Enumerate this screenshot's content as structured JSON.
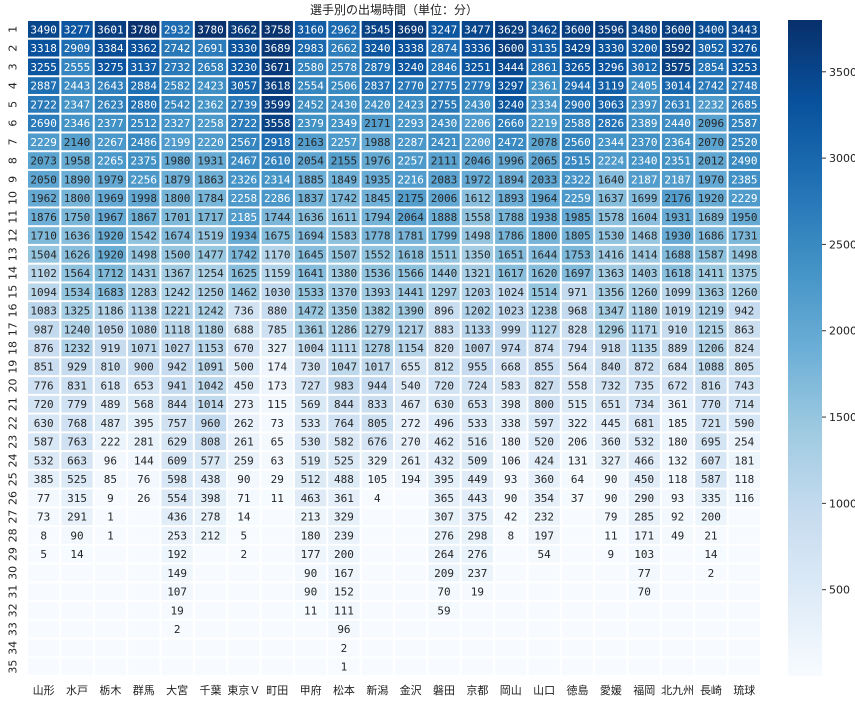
{
  "chart_data": {
    "type": "heatmap",
    "title": "選手別の出場時間（単位：分）",
    "xlabel": "",
    "ylabel": "",
    "colormap": "Blues",
    "vmin": 0,
    "vmax": 3800,
    "colorbar_ticks": [
      500,
      1000,
      1500,
      2000,
      2500,
      3000,
      3500
    ],
    "columns": [
      "山形",
      "水戸",
      "栃木",
      "群馬",
      "大宮",
      "千葉",
      "東京Ｖ",
      "町田",
      "甲府",
      "松本",
      "新潟",
      "金沢",
      "磐田",
      "京都",
      "岡山",
      "山口",
      "徳島",
      "愛媛",
      "福岡",
      "北九州",
      "長崎",
      "琉球"
    ],
    "rows": [
      "1",
      "2",
      "3",
      "4",
      "5",
      "6",
      "7",
      "8",
      "9",
      "10",
      "11",
      "12",
      "13",
      "14",
      "15",
      "16",
      "17",
      "18",
      "19",
      "20",
      "21",
      "22",
      "23",
      "24",
      "25",
      "26",
      "27",
      "28",
      "29",
      "30",
      "31",
      "32",
      "33",
      "34",
      "35"
    ],
    "values": [
      [
        3490,
        3277,
        3601,
        3780,
        2932,
        3780,
        3662,
        3758,
        3160,
        2962,
        3545,
        3690,
        3247,
        3477,
        3629,
        3462,
        3600,
        3596,
        3480,
        3600,
        3400,
        3443
      ],
      [
        3318,
        2909,
        3384,
        3362,
        2742,
        2691,
        3330,
        3689,
        2983,
        2662,
        3240,
        3338,
        2874,
        3336,
        3600,
        3135,
        3429,
        3330,
        3200,
        3592,
        3052,
        3276
      ],
      [
        3255,
        2555,
        3275,
        3137,
        2732,
        2658,
        3230,
        3671,
        2580,
        2578,
        2879,
        3240,
        2846,
        3251,
        3444,
        2861,
        3265,
        3296,
        3012,
        3575,
        2854,
        3253
      ],
      [
        2887,
        2443,
        2643,
        2884,
        2582,
        2423,
        3057,
        3618,
        2554,
        2506,
        2837,
        2770,
        2775,
        2779,
        3297,
        2361,
        2944,
        3119,
        2405,
        3014,
        2742,
        2748
      ],
      [
        2722,
        2347,
        2623,
        2880,
        2542,
        2362,
        2739,
        3599,
        2452,
        2430,
        2420,
        2423,
        2755,
        2430,
        3240,
        2334,
        2900,
        3063,
        2397,
        2631,
        2232,
        2685
      ],
      [
        2690,
        2346,
        2377,
        2512,
        2327,
        2258,
        2722,
        3558,
        2379,
        2349,
        2171,
        2293,
        2430,
        2206,
        2660,
        2219,
        2588,
        2826,
        2389,
        2440,
        2096,
        2587
      ],
      [
        2229,
        2140,
        2267,
        2486,
        2199,
        2220,
        2567,
        2918,
        2163,
        2257,
        1988,
        2287,
        2421,
        2200,
        2472,
        2078,
        2560,
        2344,
        2370,
        2364,
        2070,
        2520
      ],
      [
        2073,
        1958,
        2265,
        2375,
        1980,
        1931,
        2467,
        2610,
        2054,
        2155,
        1976,
        2257,
        2111,
        2046,
        1996,
        2065,
        2515,
        2224,
        2340,
        2351,
        2012,
        2490
      ],
      [
        2050,
        1890,
        1979,
        2256,
        1879,
        1863,
        2326,
        2314,
        1885,
        1849,
        1935,
        2216,
        2083,
        1972,
        1894,
        2033,
        2322,
        1640,
        2187,
        2187,
        1970,
        2385
      ],
      [
        1962,
        1800,
        1969,
        1998,
        1800,
        1784,
        2258,
        2286,
        1837,
        1742,
        1845,
        2175,
        2006,
        1612,
        1893,
        1964,
        2259,
        1637,
        1699,
        2176,
        1920,
        2229
      ],
      [
        1876,
        1750,
        1967,
        1867,
        1701,
        1717,
        2185,
        1744,
        1636,
        1611,
        1794,
        2064,
        1888,
        1558,
        1788,
        1938,
        1985,
        1578,
        1604,
        1931,
        1689,
        1950
      ],
      [
        1710,
        1636,
        1920,
        1542,
        1674,
        1519,
        1934,
        1675,
        1694,
        1583,
        1778,
        1781,
        1799,
        1498,
        1786,
        1800,
        1805,
        1530,
        1468,
        1930,
        1686,
        1731
      ],
      [
        1504,
        1626,
        1920,
        1498,
        1500,
        1477,
        1742,
        1170,
        1645,
        1507,
        1552,
        1618,
        1511,
        1350,
        1651,
        1644,
        1753,
        1416,
        1414,
        1688,
        1587,
        1498
      ],
      [
        1102,
        1564,
        1712,
        1431,
        1367,
        1254,
        1625,
        1159,
        1641,
        1380,
        1536,
        1566,
        1440,
        1321,
        1617,
        1620,
        1697,
        1363,
        1403,
        1618,
        1411,
        1375
      ],
      [
        1094,
        1534,
        1683,
        1283,
        1242,
        1250,
        1462,
        1030,
        1533,
        1370,
        1393,
        1441,
        1297,
        1203,
        1024,
        1514,
        971,
        1356,
        1260,
        1099,
        1363,
        1260
      ],
      [
        1083,
        1325,
        1186,
        1138,
        1221,
        1242,
        736,
        880,
        1472,
        1350,
        1382,
        1390,
        896,
        1202,
        1023,
        1238,
        968,
        1347,
        1180,
        1019,
        1219,
        942
      ],
      [
        987,
        1240,
        1050,
        1080,
        1118,
        1180,
        688,
        785,
        1361,
        1286,
        1279,
        1217,
        883,
        1133,
        999,
        1127,
        828,
        1296,
        1171,
        910,
        1215,
        863
      ],
      [
        876,
        1232,
        919,
        1071,
        1027,
        1153,
        670,
        327,
        1004,
        1111,
        1278,
        1154,
        820,
        1007,
        974,
        874,
        794,
        918,
        1135,
        889,
        1206,
        824
      ],
      [
        851,
        929,
        810,
        900,
        942,
        1091,
        500,
        174,
        730,
        1047,
        1017,
        655,
        812,
        955,
        668,
        855,
        564,
        840,
        872,
        684,
        1088,
        805
      ],
      [
        776,
        831,
        618,
        653,
        941,
        1042,
        450,
        173,
        727,
        983,
        944,
        540,
        720,
        724,
        583,
        827,
        558,
        732,
        735,
        672,
        816,
        743
      ],
      [
        720,
        779,
        489,
        568,
        844,
        1014,
        273,
        115,
        569,
        844,
        833,
        467,
        630,
        653,
        398,
        800,
        515,
        651,
        734,
        361,
        770,
        714
      ],
      [
        630,
        768,
        487,
        395,
        757,
        960,
        262,
        73,
        533,
        764,
        805,
        272,
        496,
        533,
        338,
        597,
        322,
        445,
        681,
        185,
        721,
        590
      ],
      [
        587,
        763,
        222,
        281,
        629,
        808,
        261,
        65,
        530,
        582,
        676,
        270,
        462,
        516,
        180,
        520,
        206,
        360,
        532,
        180,
        695,
        254
      ],
      [
        532,
        663,
        96,
        144,
        609,
        577,
        259,
        63,
        519,
        525,
        329,
        261,
        432,
        509,
        106,
        424,
        131,
        327,
        466,
        132,
        607,
        181
      ],
      [
        385,
        525,
        85,
        76,
        598,
        438,
        90,
        29,
        512,
        488,
        105,
        194,
        395,
        449,
        93,
        360,
        64,
        90,
        450,
        118,
        587,
        118
      ],
      [
        77,
        315,
        9,
        26,
        554,
        398,
        71,
        11,
        463,
        361,
        4,
        null,
        365,
        443,
        90,
        354,
        37,
        90,
        290,
        93,
        335,
        116
      ],
      [
        73,
        291,
        1,
        null,
        436,
        278,
        14,
        null,
        213,
        329,
        null,
        null,
        307,
        375,
        42,
        232,
        null,
        79,
        285,
        92,
        200,
        null
      ],
      [
        8,
        90,
        1,
        null,
        253,
        212,
        5,
        null,
        180,
        239,
        null,
        null,
        276,
        298,
        8,
        197,
        null,
        11,
        171,
        49,
        21,
        null
      ],
      [
        5,
        14,
        null,
        null,
        192,
        null,
        2,
        null,
        177,
        200,
        null,
        null,
        264,
        276,
        null,
        54,
        null,
        9,
        103,
        null,
        14,
        null
      ],
      [
        null,
        null,
        null,
        null,
        149,
        null,
        null,
        null,
        90,
        167,
        null,
        null,
        209,
        237,
        null,
        null,
        null,
        null,
        77,
        null,
        2,
        null
      ],
      [
        null,
        null,
        null,
        null,
        107,
        null,
        null,
        null,
        90,
        152,
        null,
        null,
        70,
        19,
        null,
        null,
        null,
        null,
        70,
        null,
        null,
        null
      ],
      [
        null,
        null,
        null,
        null,
        19,
        null,
        null,
        null,
        11,
        111,
        null,
        null,
        59,
        null,
        null,
        null,
        null,
        null,
        null,
        null,
        null,
        null
      ],
      [
        null,
        null,
        null,
        null,
        2,
        null,
        null,
        null,
        null,
        96,
        null,
        null,
        null,
        null,
        null,
        null,
        null,
        null,
        null,
        null,
        null,
        null
      ],
      [
        null,
        null,
        null,
        null,
        null,
        null,
        null,
        null,
        null,
        2,
        null,
        null,
        null,
        null,
        null,
        null,
        null,
        null,
        null,
        null,
        null,
        null
      ],
      [
        null,
        null,
        null,
        null,
        null,
        null,
        null,
        null,
        null,
        1,
        null,
        null,
        null,
        null,
        null,
        null,
        null,
        null,
        null,
        null,
        null,
        null
      ]
    ],
    "grid": true,
    "legend": "colorbar-right"
  }
}
